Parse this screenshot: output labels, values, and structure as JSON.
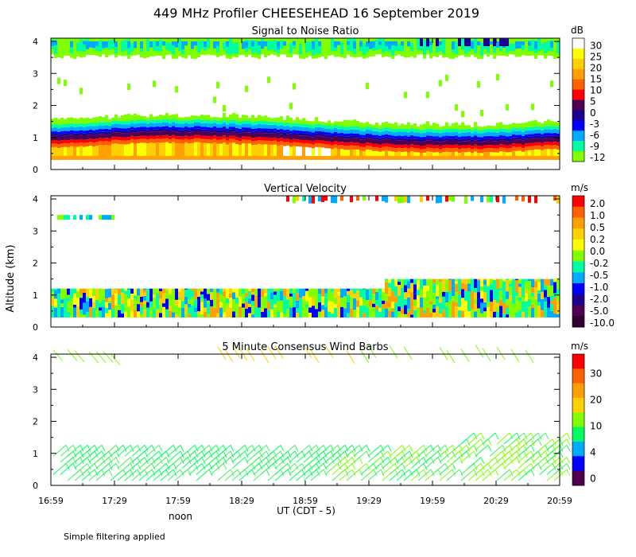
{
  "title": "449 MHz Profiler CHEESEHEAD 16 September 2019",
  "footer_note": "Simple filtering applied",
  "y_axis_label": "Altitude (km)",
  "x_axis": {
    "label": "UT  (CDT - 5)",
    "noon_label": "noon",
    "tick_labels": [
      "16:59",
      "17:29",
      "17:59",
      "18:29",
      "18:59",
      "19:29",
      "19:59",
      "20:29",
      "20:59"
    ],
    "noon_tick_index": 2
  },
  "chart_data": [
    {
      "type": "heatmap",
      "title": "Signal to Noise Ratio",
      "ylabel": "Altitude (km)",
      "ylim": [
        0,
        4.1
      ],
      "y_ticks": [
        0,
        1,
        2,
        3,
        4
      ],
      "colorbar": {
        "unit": "dB",
        "labels": [
          "30",
          "25",
          "20",
          "15",
          "10",
          "5",
          "0",
          "-3",
          "-6",
          "-9",
          "-12"
        ],
        "colors": [
          "#ffffff",
          "#ffff00",
          "#ffd000",
          "#ffa000",
          "#ff6000",
          "#ff0000",
          "#500050",
          "#1e0090",
          "#0000ff",
          "#00aaff",
          "#00ffa0",
          "#80ff00"
        ]
      },
      "layers": [
        {
          "name": "boundary-layer-high-snr",
          "alt_min": 0.3,
          "alt_max": 0.95,
          "snr_range_db": [
            15,
            30
          ]
        },
        {
          "name": "boundary-layer-top",
          "alt_min": 0.95,
          "alt_max": 1.2,
          "snr_range_db": [
            -6,
            10
          ]
        },
        {
          "name": "low-snr-band",
          "alt_min": 1.2,
          "alt_max": 1.6,
          "snr_range_db": [
            -12,
            -3
          ]
        },
        {
          "name": "upper-echo",
          "alt_min": 3.4,
          "alt_max": 4.1,
          "snr_range_db": [
            -12,
            0
          ]
        }
      ]
    },
    {
      "type": "heatmap",
      "title": "Vertical Velocity",
      "ylabel": "Altitude (km)",
      "ylim": [
        0,
        4.1
      ],
      "y_ticks": [
        0,
        1,
        2,
        3,
        4
      ],
      "colorbar": {
        "unit": "m/s",
        "labels": [
          "2.0",
          "1.0",
          "0.5",
          "0.2",
          "0.0",
          "-0.2",
          "-0.5",
          "-1.0",
          "-2.0",
          "-5.0",
          "-10.0"
        ],
        "colors": [
          "#ff0000",
          "#ff6000",
          "#ffa000",
          "#ffd000",
          "#ffff00",
          "#80ff00",
          "#00ffa0",
          "#00aaff",
          "#0000ff",
          "#1e0090",
          "#500050",
          "#300030"
        ]
      },
      "layers": [
        {
          "name": "boundary-layer",
          "alt_min": 0.3,
          "alt_max": 1.2,
          "velocity_range_ms": [
            -2.0,
            1.0
          ]
        },
        {
          "name": "upper-echo",
          "alt_min": 3.4,
          "alt_max": 4.1,
          "velocity_range_ms": [
            -1.0,
            2.0
          ]
        }
      ]
    },
    {
      "type": "scatter",
      "title": "5 Minute Consensus Wind Barbs",
      "ylabel": "Altitude (km)",
      "ylim": [
        0,
        4.1
      ],
      "y_ticks": [
        0,
        1,
        2,
        3,
        4
      ],
      "colorbar": {
        "unit": "m/s",
        "labels": [
          "30",
          "20",
          "10",
          "4",
          "0"
        ],
        "colors": [
          "#ff0000",
          "#ff6000",
          "#ffa000",
          "#ffd000",
          "#80ff00",
          "#00ff60",
          "#00aaff",
          "#0000ff",
          "#500050"
        ]
      },
      "barb_speed_range_ms": [
        4,
        20
      ],
      "barb_altitude_ranges_km": [
        [
          0.1,
          1.2
        ],
        [
          3.7,
          4.1
        ]
      ]
    }
  ]
}
